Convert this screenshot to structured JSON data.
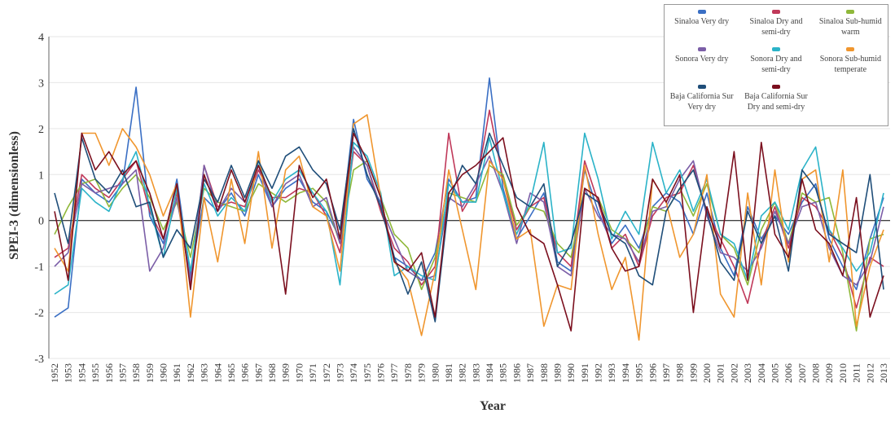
{
  "chart_data": {
    "type": "line",
    "y_label": "SPEI-3 (dimensionless)",
    "x_label": "Year",
    "grid": true,
    "legend_position": "upper right",
    "ylim": [
      -3,
      4
    ],
    "yticks": [
      -3,
      -2,
      -1,
      0,
      1,
      2,
      3,
      4
    ],
    "categories": [
      "1952",
      "1953",
      "1954",
      "1955",
      "1956",
      "1957",
      "1958",
      "1959",
      "1960",
      "1961",
      "1962",
      "1963",
      "1964",
      "1965",
      "1966",
      "1967",
      "1968",
      "1969",
      "1970",
      "1971",
      "1972",
      "1973",
      "1974",
      "1975",
      "1976",
      "1977",
      "1978",
      "1979",
      "1980",
      "1981",
      "1982",
      "1983",
      "1984",
      "1985",
      "1986",
      "1987",
      "1988",
      "1989",
      "1990",
      "1991",
      "1992",
      "1993",
      "1994",
      "1995",
      "1996",
      "1997",
      "1998",
      "1999",
      "2000",
      "2001",
      "2002",
      "2003",
      "2004",
      "2005",
      "2006",
      "2007",
      "2008",
      "2009",
      "2010",
      "2011",
      "2012",
      "2013"
    ],
    "series": [
      {
        "name": "Sinaloa Very dry",
        "color": "#3a6fc4",
        "values": [
          -2.1,
          -1.9,
          0.9,
          0.6,
          0.4,
          0.8,
          2.9,
          0.1,
          -0.5,
          0.9,
          -1.2,
          0.5,
          0.2,
          0.6,
          0.1,
          1.0,
          0.3,
          0.7,
          0.9,
          0.4,
          0.2,
          -0.4,
          2.2,
          0.9,
          0.4,
          -0.8,
          -1.0,
          -1.3,
          -0.7,
          0.9,
          0.4,
          0.5,
          3.1,
          0.7,
          -0.4,
          0.1,
          0.6,
          -0.9,
          -1.1,
          1.1,
          0.2,
          -0.5,
          -0.1,
          -0.6,
          0.3,
          0.6,
          0.4,
          -0.3,
          0.6,
          -0.6,
          -1.2,
          0.3,
          -0.4,
          0.1,
          -0.3,
          0.4,
          0.8,
          -0.4,
          -1.0,
          -1.5,
          -0.4,
          0.5
        ]
      },
      {
        "name": "Sinaloa Dry and semi-dry",
        "color": "#c0395a",
        "values": [
          -0.8,
          -0.6,
          1.0,
          0.7,
          0.5,
          0.9,
          1.3,
          0.2,
          -0.4,
          0.6,
          -1.4,
          1.2,
          0.3,
          0.4,
          0.3,
          1.1,
          0.5,
          0.5,
          0.7,
          0.6,
          0.1,
          -0.7,
          1.5,
          1.2,
          0.2,
          -0.6,
          -0.9,
          -1.4,
          -1.0,
          1.9,
          0.2,
          0.7,
          2.4,
          0.9,
          -0.2,
          0.3,
          0.5,
          -0.7,
          -1.0,
          1.3,
          0.4,
          -0.6,
          -0.3,
          -1.0,
          0.1,
          0.5,
          0.6,
          1.2,
          0.2,
          -0.4,
          -1.0,
          -1.8,
          -0.5,
          0.3,
          -0.6,
          0.5,
          0.3,
          -0.2,
          -0.8,
          -1.9,
          -0.8,
          -1.0
        ]
      },
      {
        "name": "Sinaloa Sub-humid warm",
        "color": "#8fb83a",
        "values": [
          -0.3,
          0.3,
          0.8,
          0.9,
          0.3,
          0.7,
          1.0,
          0.5,
          -0.2,
          0.4,
          -0.8,
          0.7,
          0.4,
          0.3,
          0.2,
          0.8,
          0.6,
          0.4,
          0.6,
          0.7,
          0.4,
          -0.5,
          1.1,
          1.3,
          0.5,
          -0.3,
          -0.6,
          -1.5,
          -0.8,
          0.6,
          0.5,
          0.4,
          1.2,
          1.0,
          -0.1,
          0.3,
          0.2,
          -0.5,
          -0.8,
          0.7,
          0.5,
          -0.2,
          -0.4,
          -0.7,
          0.3,
          0.2,
          0.7,
          0.1,
          0.8,
          -0.3,
          -0.6,
          -1.4,
          -0.2,
          0.4,
          -0.5,
          0.6,
          0.4,
          0.5,
          -0.7,
          -2.4,
          -0.4,
          -0.3
        ]
      },
      {
        "name": "Sonora Very dry",
        "color": "#7b5ea7",
        "values": [
          -1.0,
          -0.7,
          0.8,
          0.6,
          0.7,
          0.8,
          1.1,
          -1.1,
          -0.6,
          0.5,
          -1.3,
          1.2,
          0.2,
          0.7,
          0.4,
          1.2,
          0.3,
          0.8,
          1.0,
          0.3,
          0.5,
          -0.5,
          1.6,
          1.2,
          0.3,
          -0.4,
          -1.1,
          -1.3,
          -1.2,
          0.5,
          0.3,
          0.8,
          1.4,
          0.6,
          -0.5,
          0.6,
          0.4,
          -1.0,
          -1.2,
          0.7,
          0.1,
          -0.3,
          -0.4,
          -0.9,
          0.2,
          0.3,
          0.9,
          1.3,
          0.1,
          -0.7,
          -0.8,
          -1.1,
          -0.6,
          0.2,
          -0.5,
          0.3,
          0.4,
          -0.6,
          -1.2,
          -1.4,
          -0.9,
          0.3
        ]
      },
      {
        "name": "Sonora Dry and semi-dry",
        "color": "#2bb3c8",
        "values": [
          -1.6,
          -1.4,
          0.7,
          0.4,
          0.2,
          0.9,
          1.5,
          0.3,
          -0.8,
          0.7,
          -1.1,
          0.8,
          0.1,
          0.5,
          0.2,
          1.3,
          0.4,
          0.9,
          1.1,
          0.6,
          0.2,
          -1.4,
          1.7,
          1.4,
          0.6,
          -1.2,
          -1.0,
          -1.2,
          -1.3,
          0.8,
          0.4,
          0.4,
          1.8,
          0.6,
          -0.3,
          0.4,
          1.7,
          -0.7,
          -0.6,
          1.9,
          0.9,
          -0.4,
          0.2,
          -0.3,
          1.7,
          0.6,
          1.1,
          0.2,
          0.9,
          -0.3,
          -0.5,
          -1.3,
          0.1,
          0.4,
          -0.2,
          1.1,
          1.6,
          -0.2,
          -0.6,
          -1.1,
          -0.7,
          0.6
        ]
      },
      {
        "name": "Sonora Sub-humid temperate",
        "color": "#f0962e",
        "values": [
          -0.6,
          -1.1,
          1.9,
          1.9,
          1.2,
          2.0,
          1.6,
          1.0,
          0.1,
          0.8,
          -2.1,
          0.5,
          -0.9,
          0.9,
          -0.5,
          1.5,
          -0.6,
          1.1,
          1.4,
          0.3,
          0.1,
          -1.1,
          2.1,
          2.3,
          0.5,
          -0.9,
          -1.3,
          -2.5,
          -1.1,
          1.1,
          -0.2,
          -1.5,
          1.3,
          0.9,
          -0.4,
          -0.2,
          -2.3,
          -1.4,
          -1.5,
          1.2,
          -0.3,
          -1.5,
          -0.8,
          -2.6,
          0.9,
          0.4,
          -0.8,
          -0.3,
          1.0,
          -1.6,
          -2.1,
          0.6,
          -1.4,
          1.1,
          -0.9,
          0.9,
          1.1,
          -0.9,
          1.1,
          -2.3,
          -1.0,
          -0.2
        ]
      },
      {
        "name": "Baja California Sur Very dry",
        "color": "#1f4e79",
        "values": [
          0.6,
          -0.5,
          1.8,
          0.9,
          0.6,
          1.1,
          0.3,
          0.4,
          -0.8,
          -0.2,
          -0.6,
          0.9,
          0.4,
          1.2,
          0.5,
          1.3,
          0.7,
          1.4,
          1.6,
          1.1,
          0.8,
          -0.2,
          2.0,
          1.0,
          0.3,
          -0.8,
          -1.6,
          -0.9,
          -2.2,
          0.4,
          1.2,
          0.8,
          1.9,
          1.2,
          0.5,
          0.3,
          0.8,
          -1.0,
          -0.5,
          0.6,
          0.4,
          -0.3,
          -0.5,
          -1.2,
          -1.4,
          0.2,
          0.7,
          1.1,
          0.2,
          -0.9,
          -1.3,
          0.2,
          -0.5,
          0.1,
          -1.1,
          1.1,
          0.7,
          -0.3,
          -0.5,
          -0.7,
          1.0,
          -1.5
        ]
      },
      {
        "name": "Baja California Sur Dry and semi-dry",
        "color": "#7b0f1e",
        "values": [
          0.2,
          -1.3,
          1.9,
          1.1,
          1.5,
          1.0,
          1.3,
          0.6,
          -0.4,
          0.8,
          -1.5,
          1.0,
          0.2,
          1.1,
          0.4,
          1.2,
          0.5,
          -1.6,
          1.2,
          0.5,
          0.9,
          -0.4,
          1.9,
          1.3,
          0.5,
          -0.9,
          -1.1,
          -0.7,
          -2.1,
          0.6,
          1.0,
          1.2,
          1.5,
          1.8,
          0.3,
          -0.3,
          -0.5,
          -1.4,
          -2.4,
          0.7,
          0.5,
          -0.6,
          -1.1,
          -1.0,
          0.9,
          0.4,
          1.0,
          -2.0,
          0.3,
          -0.6,
          1.5,
          -1.3,
          1.7,
          -0.3,
          -0.8,
          0.9,
          -0.2,
          -0.5,
          -1.2,
          0.5,
          -2.1,
          -1.2
        ]
      }
    ]
  }
}
